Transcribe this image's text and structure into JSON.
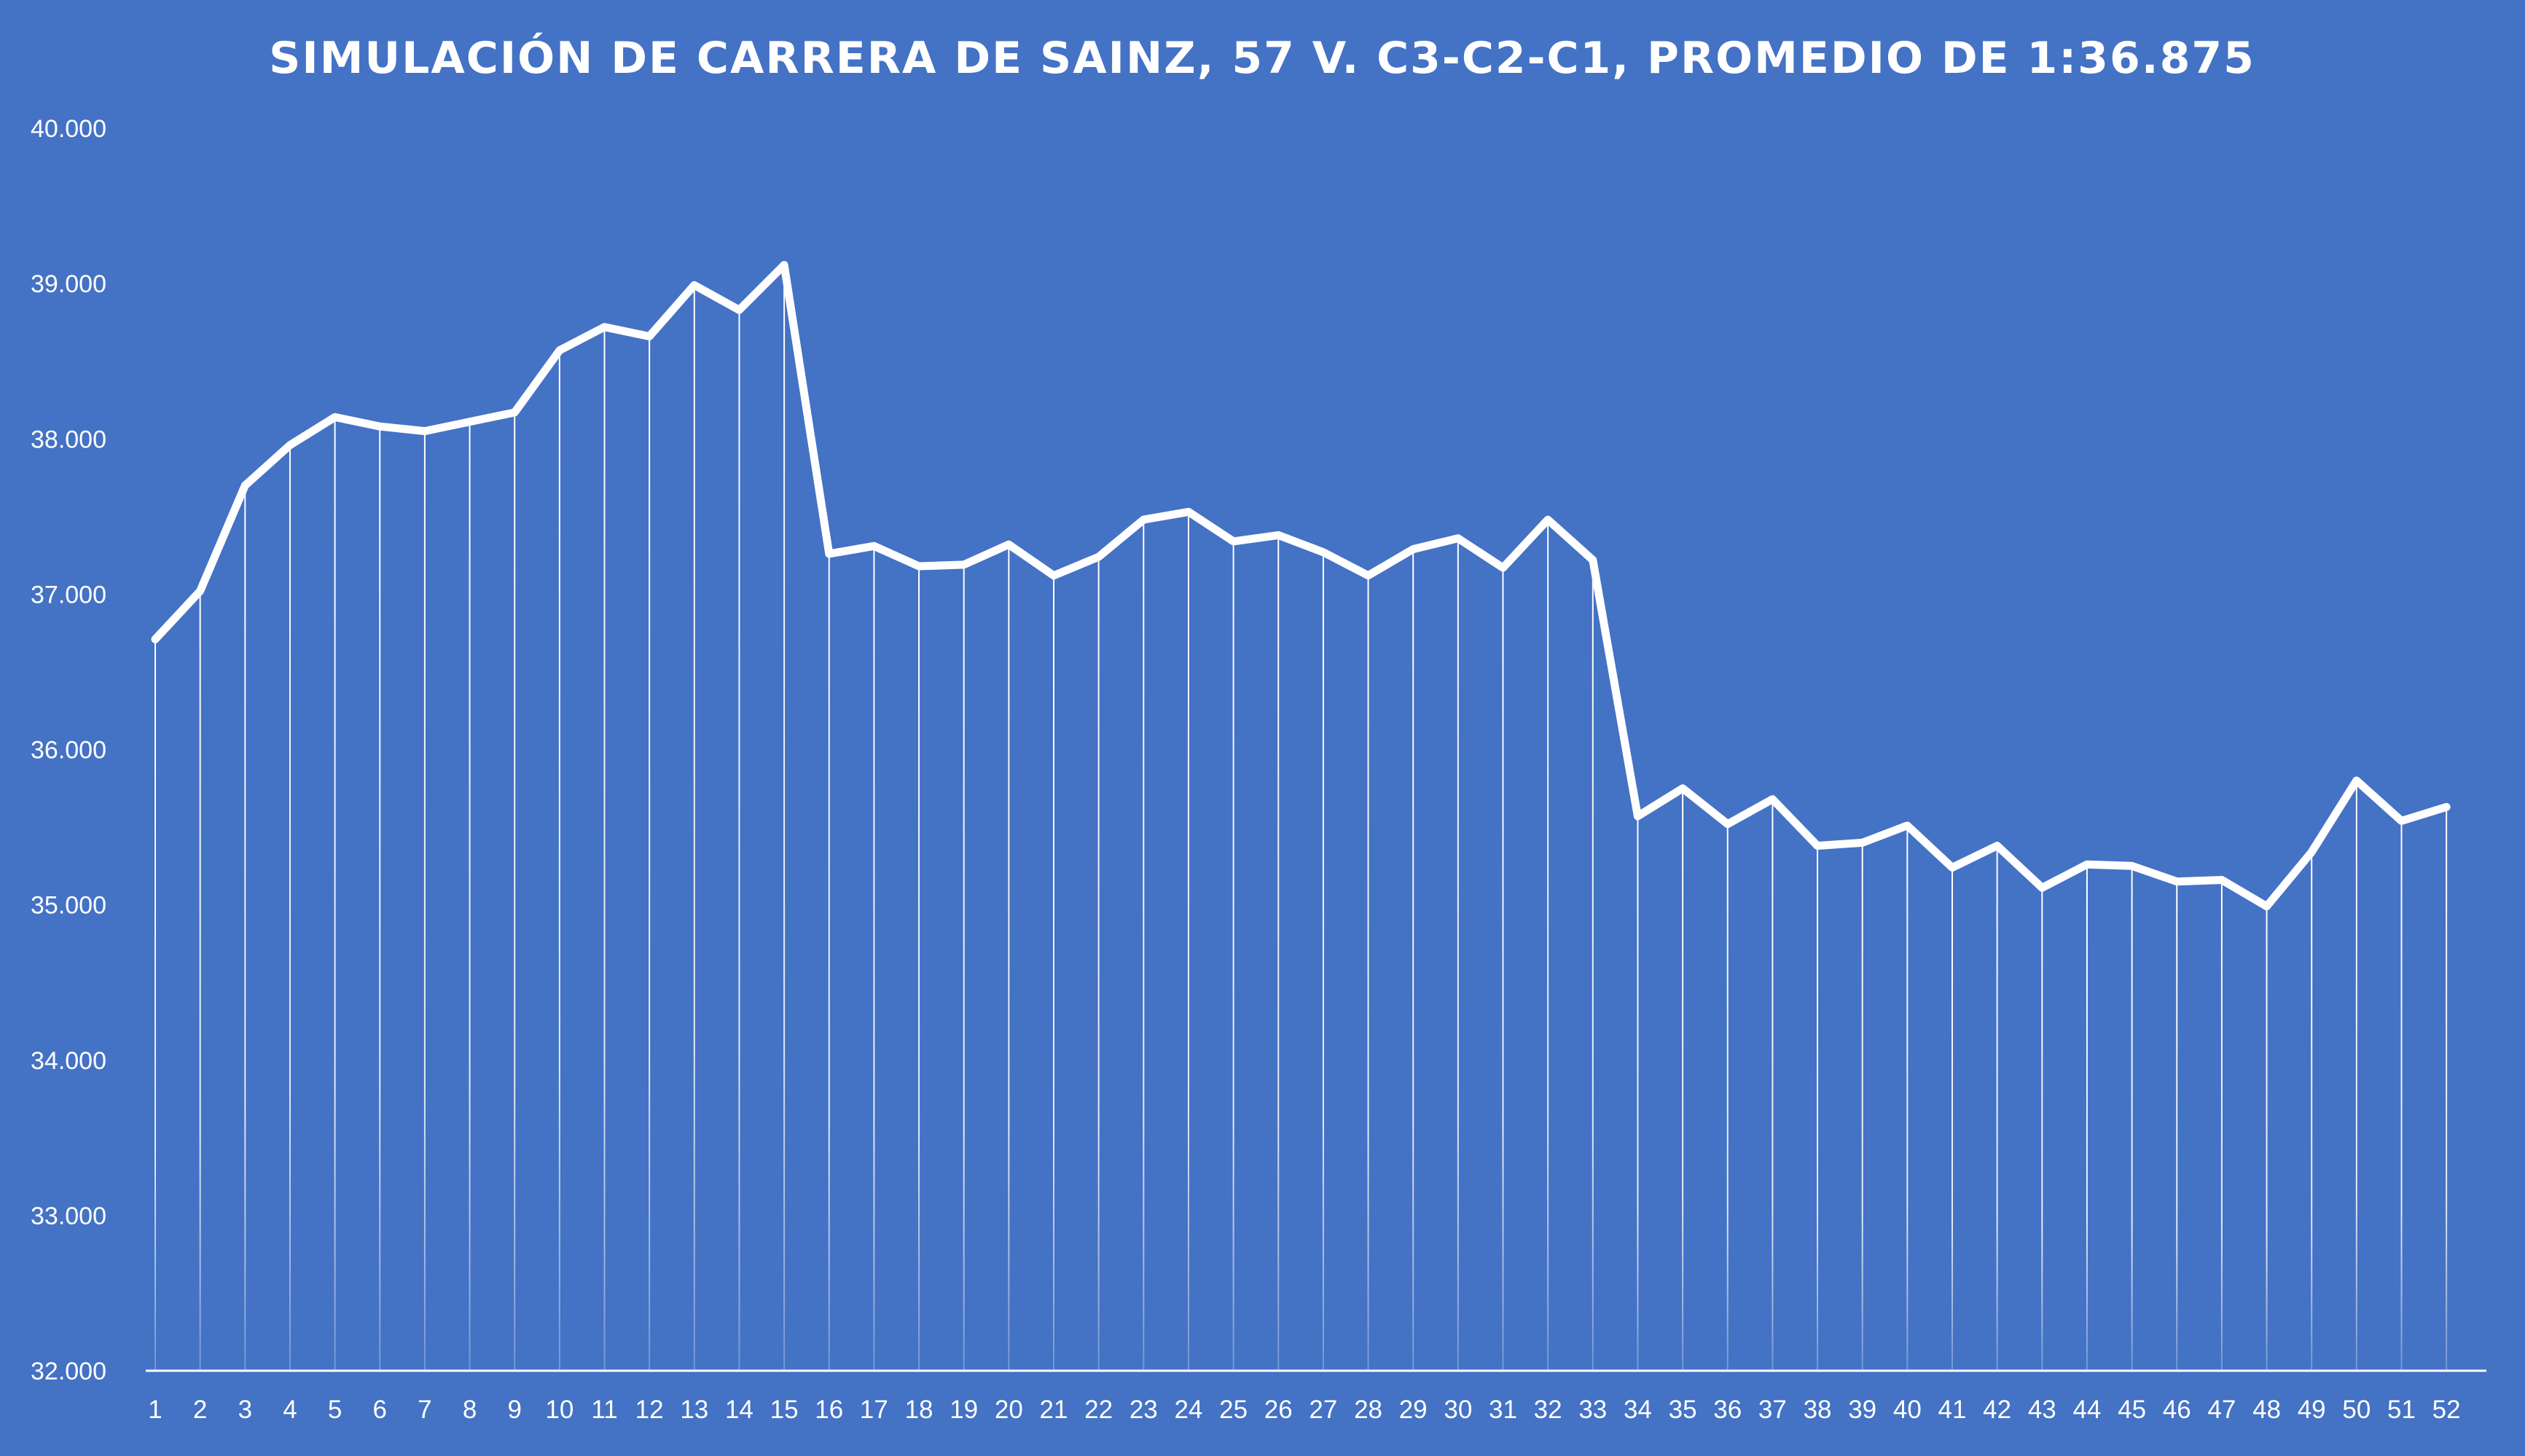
{
  "chart_data": {
    "type": "line",
    "title": "SIMULACIÓN DE CARRERA DE SAINZ, 57 V. C3-C2-C1, PROMEDIO DE 1:36.875",
    "xlabel": "",
    "ylabel": "",
    "ylim": [
      32.0,
      40.0
    ],
    "ytick_labels": [
      "32.000",
      "33.000",
      "34.000",
      "35.000",
      "36.000",
      "37.000",
      "38.000",
      "39.000",
      "40.000"
    ],
    "x": [
      1,
      2,
      3,
      4,
      5,
      6,
      7,
      8,
      9,
      10,
      11,
      12,
      13,
      14,
      15,
      16,
      17,
      18,
      19,
      20,
      21,
      22,
      23,
      24,
      25,
      26,
      27,
      28,
      29,
      30,
      31,
      32,
      33,
      34,
      35,
      36,
      37,
      38,
      39,
      40,
      41,
      42,
      43,
      44,
      45,
      46,
      47,
      48,
      49,
      50,
      51,
      52
    ],
    "x_tick_labels": [
      "1",
      "2",
      "3",
      "4",
      "5",
      "6",
      "7",
      "8",
      "9",
      "10",
      "11",
      "12",
      "13",
      "14",
      "15",
      "16",
      "17",
      "18",
      "19",
      "20",
      "21",
      "22",
      "23",
      "24",
      "25",
      "26",
      "27",
      "28",
      "29",
      "30",
      "31",
      "32",
      "33",
      "34",
      "35",
      "36",
      "37",
      "38",
      "39",
      "40",
      "41",
      "42",
      "43",
      "44",
      "45",
      "46",
      "47",
      "48",
      "49",
      "50",
      "51",
      "52"
    ],
    "values": [
      36.71,
      37.02,
      37.7,
      37.96,
      38.14,
      38.08,
      38.05,
      38.11,
      38.17,
      38.57,
      38.72,
      38.66,
      38.99,
      38.83,
      39.12,
      37.26,
      37.31,
      37.18,
      37.19,
      37.32,
      37.12,
      37.24,
      37.48,
      37.53,
      37.34,
      37.38,
      37.27,
      37.12,
      37.29,
      37.36,
      37.17,
      37.48,
      37.22,
      35.57,
      35.75,
      35.52,
      35.68,
      35.38,
      35.4,
      35.51,
      35.24,
      35.38,
      35.11,
      35.26,
      35.25,
      35.15,
      35.16,
      34.99,
      35.34,
      35.8,
      35.54,
      35.63
    ],
    "grid": false,
    "drop_lines": true,
    "legend": "none",
    "colors": {
      "background": "#4472c4",
      "line": "#ffffff",
      "text": "#ffffff"
    }
  }
}
